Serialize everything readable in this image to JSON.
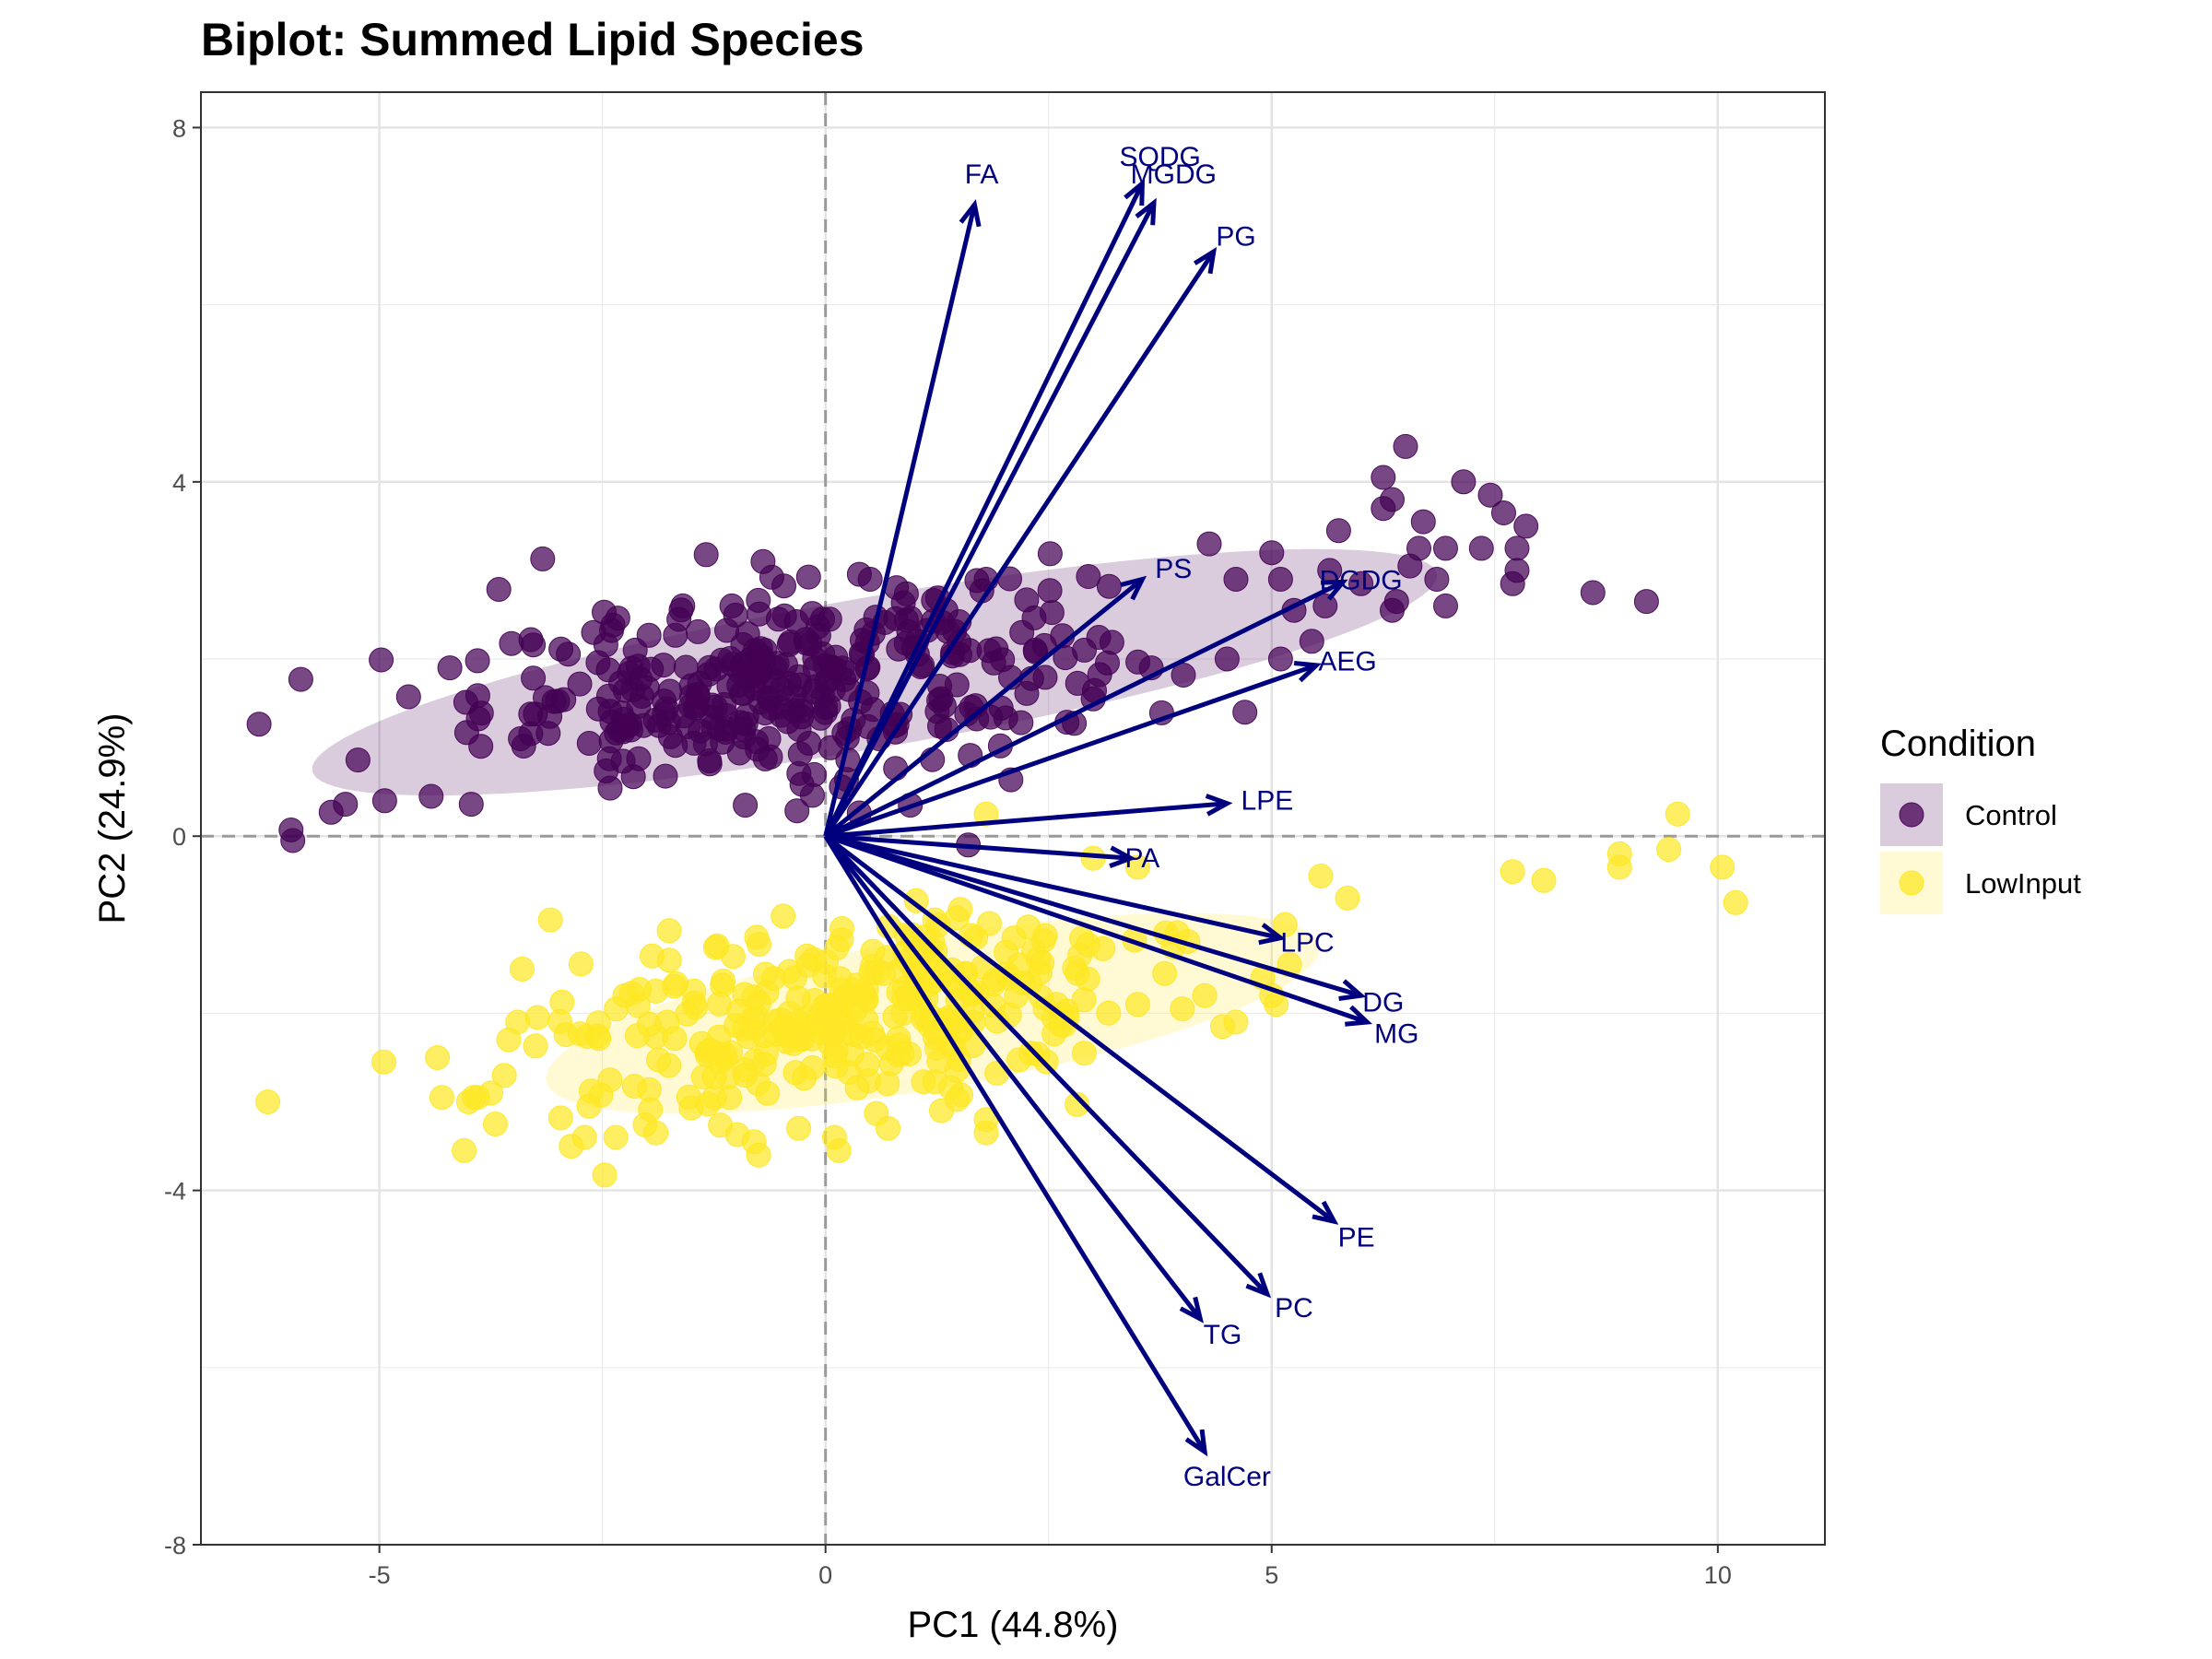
{
  "chart_data": {
    "type": "scatter",
    "subtype": "pca-biplot",
    "title": "Biplot: Summed Lipid Species",
    "xlabel": "PC1 (44.8%)",
    "ylabel": "PC2 (24.9%)",
    "xlim": [
      -7.0,
      11.2
    ],
    "ylim": [
      -8.0,
      8.4
    ],
    "xticks": [
      -5,
      0,
      5,
      10
    ],
    "yticks": [
      -8,
      -4,
      0,
      4,
      8
    ],
    "ytick_labels": [
      "-8",
      "-4",
      "0",
      "4",
      "8"
    ],
    "xtick_labels": [
      "-5",
      "0",
      "5",
      "10"
    ],
    "grid": true,
    "reference_lines": {
      "x": 0,
      "y": 0,
      "style": "dashed"
    },
    "legend": {
      "title": "Condition",
      "position": "right",
      "entries": [
        {
          "name": "Control",
          "color": "#440154"
        },
        {
          "name": "LowInput",
          "color": "#fde725"
        }
      ]
    },
    "series": [
      {
        "name": "Control",
        "color": "#440154",
        "ellipse": {
          "cx": 0.55,
          "cy": 1.85,
          "rx": 6.4,
          "ry": 0.85,
          "angle_deg": 10
        },
        "highlight_points": [
          [
            -5.99,
            0.07
          ],
          [
            -5.97,
            -0.05
          ],
          [
            -5.88,
            1.77
          ],
          [
            -5.54,
            0.27
          ],
          [
            -5.38,
            0.36
          ],
          [
            -5.24,
            0.86
          ],
          [
            -4.98,
            1.99
          ],
          [
            -4.94,
            0.4
          ],
          [
            -4.42,
            0.45
          ],
          [
            -4.21,
            1.9
          ],
          [
            -3.97,
            0.36
          ],
          [
            -3.9,
            1.98
          ],
          [
            -3.17,
            3.13
          ],
          [
            -3.42,
            1.1
          ],
          [
            -2.6,
            2.3
          ],
          [
            -1.6,
            2.6
          ],
          [
            -0.7,
            3.1
          ],
          [
            -0.9,
            0.35
          ],
          [
            0.5,
            2.9
          ],
          [
            0.95,
            0.35
          ],
          [
            1.35,
            2.55
          ],
          [
            1.8,
            2.9
          ],
          [
            2.2,
            2.3
          ],
          [
            2.35,
            2.1
          ],
          [
            2.9,
            2.1
          ],
          [
            3.0,
            1.55
          ],
          [
            3.65,
            1.9
          ],
          [
            4.3,
            3.3
          ],
          [
            4.6,
            2.9
          ],
          [
            4.5,
            2.0
          ],
          [
            5.0,
            3.2
          ],
          [
            5.1,
            2.9
          ],
          [
            5.1,
            2.0
          ],
          [
            5.25,
            2.55
          ],
          [
            5.45,
            2.2
          ],
          [
            5.6,
            2.6
          ],
          [
            5.65,
            3.0
          ],
          [
            5.75,
            3.45
          ],
          [
            6.0,
            2.85
          ],
          [
            6.25,
            3.7
          ],
          [
            6.25,
            4.05
          ],
          [
            6.35,
            3.8
          ],
          [
            6.4,
            2.65
          ],
          [
            6.35,
            2.55
          ],
          [
            6.5,
            4.4
          ],
          [
            6.55,
            3.05
          ],
          [
            6.65,
            3.25
          ],
          [
            6.7,
            3.55
          ],
          [
            6.85,
            2.9
          ],
          [
            6.95,
            3.25
          ],
          [
            6.95,
            2.6
          ],
          [
            7.15,
            4.0
          ],
          [
            7.35,
            3.25
          ],
          [
            7.45,
            3.85
          ],
          [
            7.6,
            3.65
          ],
          [
            7.7,
            2.85
          ],
          [
            7.75,
            3.0
          ],
          [
            7.75,
            3.25
          ],
          [
            7.85,
            3.5
          ],
          [
            8.6,
            2.75
          ],
          [
            9.2,
            2.65
          ],
          [
            1.6,
            -0.1
          ],
          [
            0.6,
            1.1
          ],
          [
            -1.3,
            0.85
          ]
        ],
        "cluster": {
          "cx": -0.4,
          "cy": 1.75,
          "sx": 1.7,
          "sy": 0.55,
          "n": 330,
          "r_xy": 0.35
        }
      },
      {
        "name": "LowInput",
        "color": "#fde725",
        "ellipse": {
          "cx": 1.2,
          "cy": -2.0,
          "rx": 4.4,
          "ry": 0.85,
          "angle_deg": 10
        },
        "highlight_points": [
          [
            -6.25,
            -3.0
          ],
          [
            -4.95,
            -2.55
          ],
          [
            -4.35,
            -2.5
          ],
          [
            -4.3,
            -2.95
          ],
          [
            -4.05,
            -3.55
          ],
          [
            -4.0,
            -3.0
          ],
          [
            -3.9,
            -2.95
          ],
          [
            -3.75,
            -2.9
          ],
          [
            -3.7,
            -3.25
          ],
          [
            -3.6,
            -2.7
          ],
          [
            -3.55,
            -2.3
          ],
          [
            -3.4,
            -1.5
          ],
          [
            -3.45,
            -2.1
          ],
          [
            -2.85,
            -3.5
          ],
          [
            -2.7,
            -3.4
          ],
          [
            -2.65,
            -3.05
          ],
          [
            -2.35,
            -3.4
          ],
          [
            -2.25,
            -1.8
          ],
          [
            -1.9,
            -3.35
          ],
          [
            -1.75,
            -1.4
          ],
          [
            -0.8,
            -3.45
          ],
          [
            -0.75,
            -3.6
          ],
          [
            -0.3,
            -3.3
          ],
          [
            0.1,
            -3.4
          ],
          [
            0.15,
            -3.55
          ],
          [
            0.7,
            -3.3
          ],
          [
            1.3,
            -3.1
          ],
          [
            1.8,
            -3.2
          ],
          [
            1.8,
            -3.35
          ],
          [
            2.3,
            -2.45
          ],
          [
            2.9,
            -2.45
          ],
          [
            3.5,
            -1.9
          ],
          [
            3.8,
            -1.55
          ],
          [
            4.0,
            -1.95
          ],
          [
            4.25,
            -1.8
          ],
          [
            4.45,
            -2.15
          ],
          [
            4.6,
            -2.1
          ],
          [
            4.9,
            -1.6
          ],
          [
            5.0,
            -1.8
          ],
          [
            5.05,
            -1.9
          ],
          [
            5.2,
            -1.45
          ],
          [
            5.15,
            -1.0
          ],
          [
            5.55,
            -0.45
          ],
          [
            5.85,
            -0.7
          ],
          [
            3.0,
            -0.25
          ],
          [
            3.5,
            -0.35
          ],
          [
            1.8,
            0.25
          ],
          [
            7.7,
            -0.4
          ],
          [
            8.05,
            -0.5
          ],
          [
            8.9,
            -0.2
          ],
          [
            8.9,
            -0.35
          ],
          [
            9.45,
            -0.15
          ],
          [
            9.55,
            0.25
          ],
          [
            10.05,
            -0.35
          ],
          [
            10.2,
            -0.75
          ],
          [
            -1.9,
            -1.75
          ],
          [
            0.65,
            -1.55
          ]
        ],
        "cluster": {
          "cx": 0.35,
          "cy": -2.0,
          "sx": 1.55,
          "sy": 0.55,
          "n": 300,
          "r_xy": 0.35
        }
      }
    ],
    "loadings": [
      {
        "label": "FA",
        "x": 1.67,
        "y": 7.13
      },
      {
        "label": "SQDG",
        "x": 3.55,
        "y": 7.37
      },
      {
        "label": "MGDG",
        "x": 3.68,
        "y": 7.15
      },
      {
        "label": "PG",
        "x": 4.35,
        "y": 6.6
      },
      {
        "label": "PS",
        "x": 3.55,
        "y": 2.9
      },
      {
        "label": "DGDG",
        "x": 5.8,
        "y": 2.87
      },
      {
        "label": "AEG",
        "x": 5.5,
        "y": 1.93
      },
      {
        "label": "LPE",
        "x": 4.5,
        "y": 0.37
      },
      {
        "label": "PA",
        "x": 3.42,
        "y": -0.25
      },
      {
        "label": "LPC",
        "x": 5.1,
        "y": -1.15
      },
      {
        "label": "DG",
        "x": 6.0,
        "y": -1.8
      },
      {
        "label": "MG",
        "x": 6.07,
        "y": -2.1
      },
      {
        "label": "PE",
        "x": 5.7,
        "y": -4.35
      },
      {
        "label": "PC",
        "x": 4.95,
        "y": -5.17
      },
      {
        "label": "TG",
        "x": 4.2,
        "y": -5.45
      },
      {
        "label": "GalCer",
        "x": 4.25,
        "y": -6.95
      }
    ],
    "loading_labels": [
      {
        "label": "FA",
        "x": 1.75,
        "y": 7.45
      },
      {
        "label": "SQDG",
        "x": 3.75,
        "y": 7.65
      },
      {
        "label": "MGDG",
        "x": 3.9,
        "y": 7.45
      },
      {
        "label": "PG",
        "x": 4.6,
        "y": 6.75
      },
      {
        "label": "PS",
        "x": 3.9,
        "y": 3.0
      },
      {
        "label": "DGDG",
        "x": 6.0,
        "y": 2.87
      },
      {
        "label": "AEG",
        "x": 5.85,
        "y": 1.95
      },
      {
        "label": "LPE",
        "x": 4.95,
        "y": 0.38
      },
      {
        "label": "PA",
        "x": 3.55,
        "y": -0.27
      },
      {
        "label": "LPC",
        "x": 5.4,
        "y": -1.22
      },
      {
        "label": "DG",
        "x": 6.25,
        "y": -1.9
      },
      {
        "label": "MG",
        "x": 6.4,
        "y": -2.25
      },
      {
        "label": "PE",
        "x": 5.95,
        "y": -4.55
      },
      {
        "label": "PC",
        "x": 5.25,
        "y": -5.35
      },
      {
        "label": "TG",
        "x": 4.45,
        "y": -5.65
      },
      {
        "label": "GalCer",
        "x": 4.5,
        "y": -7.25
      }
    ],
    "loading_color": "#00007f"
  }
}
